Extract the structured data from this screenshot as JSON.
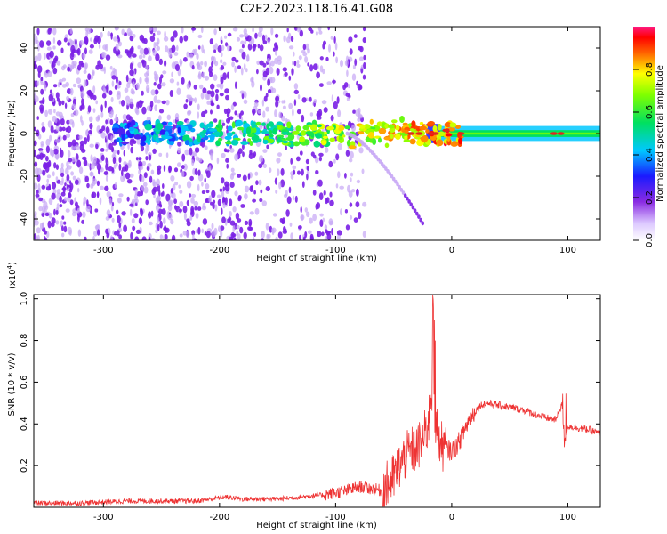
{
  "title": "C2E2.2023.118.16.41.G08",
  "colors": {
    "spectrum_low": "#7a1fe6",
    "spectrum_peak": "#e0281e",
    "snr_line": "#ee3333",
    "axis": "#000000"
  },
  "chart_data": [
    {
      "type": "heatmap",
      "title": "C2E2.2023.118.16.41.G08",
      "xlabel": "Height of straight line (km)",
      "ylabel": "Frequency (Hz)",
      "xlim": [
        -360,
        128
      ],
      "ylim": [
        -50,
        50
      ],
      "xticks": [
        -300,
        -200,
        -100,
        0,
        100
      ],
      "xtick_labels": [
        "-300",
        "-200",
        "-100",
        "0",
        "100"
      ],
      "yticks": [
        -40,
        -20,
        0,
        20,
        40
      ],
      "ytick_labels": [
        "-40",
        "-20",
        "0",
        "20",
        "40"
      ],
      "colorbar": {
        "label": "Normalized spectral amplitude",
        "range": [
          0,
          1
        ],
        "ticks": [
          0.0,
          0.2,
          0.4,
          0.6,
          0.8
        ],
        "tick_labels": [
          "0.0",
          "0.2",
          "0.4",
          "0.6",
          "0.8"
        ],
        "colormap": "rainbow (violet → blue → cyan → green → yellow → red → pink)"
      },
      "features": [
        {
          "name": "noise",
          "x_range": [
            -360,
            -75
          ],
          "freq_range": [
            -50,
            50
          ],
          "amplitude": "low"
        },
        {
          "name": "signal_band",
          "x_range": [
            -290,
            128
          ],
          "freq_center": 0,
          "amplitude": "rising to high"
        },
        {
          "name": "descending_trail",
          "x_range": [
            -90,
            -25
          ],
          "freq_start": 0,
          "freq_end": -42
        }
      ]
    },
    {
      "type": "line",
      "xlabel": "Height of straight line (km)",
      "ylabel": "SNR (10 * v/v)",
      "y_multiplier": "(x10",
      "y_multiplier_exp": "4",
      "y_multiplier_close": ")",
      "xlim": [
        -360,
        128
      ],
      "ylim": [
        0,
        1.02
      ],
      "xticks": [
        -300,
        -200,
        -100,
        0,
        100
      ],
      "xtick_labels": [
        "-300",
        "-200",
        "-100",
        "0",
        "100"
      ],
      "yticks": [
        0.2,
        0.4,
        0.6,
        0.8,
        1.0
      ],
      "ytick_labels": [
        "0.2",
        "0.4",
        "0.6",
        "0.8",
        "1.0"
      ],
      "series": [
        {
          "x": [
            -360,
            -320,
            -280,
            -250,
            -220,
            -195,
            -180,
            -150,
            -130,
            -110,
            -100,
            -90,
            -80,
            -70,
            -60,
            -50,
            -45,
            -40,
            -35,
            -30,
            -25,
            -20,
            -18,
            -15,
            -12,
            -10,
            -5,
            0,
            5,
            10,
            15,
            20,
            25,
            30,
            40,
            50,
            60,
            70,
            80,
            90,
            95,
            97,
            100,
            110,
            120,
            128
          ],
          "y": [
            0.02,
            0.02,
            0.03,
            0.03,
            0.03,
            0.05,
            0.04,
            0.04,
            0.05,
            0.06,
            0.07,
            0.08,
            0.1,
            0.09,
            0.08,
            0.14,
            0.2,
            0.24,
            0.27,
            0.28,
            0.32,
            0.4,
            0.55,
            0.45,
            0.35,
            0.3,
            0.28,
            0.27,
            0.3,
            0.36,
            0.42,
            0.46,
            0.49,
            0.5,
            0.49,
            0.48,
            0.47,
            0.45,
            0.43,
            0.42,
            0.5,
            0.3,
            0.39,
            0.38,
            0.37,
            0.35
          ]
        }
      ]
    }
  ]
}
